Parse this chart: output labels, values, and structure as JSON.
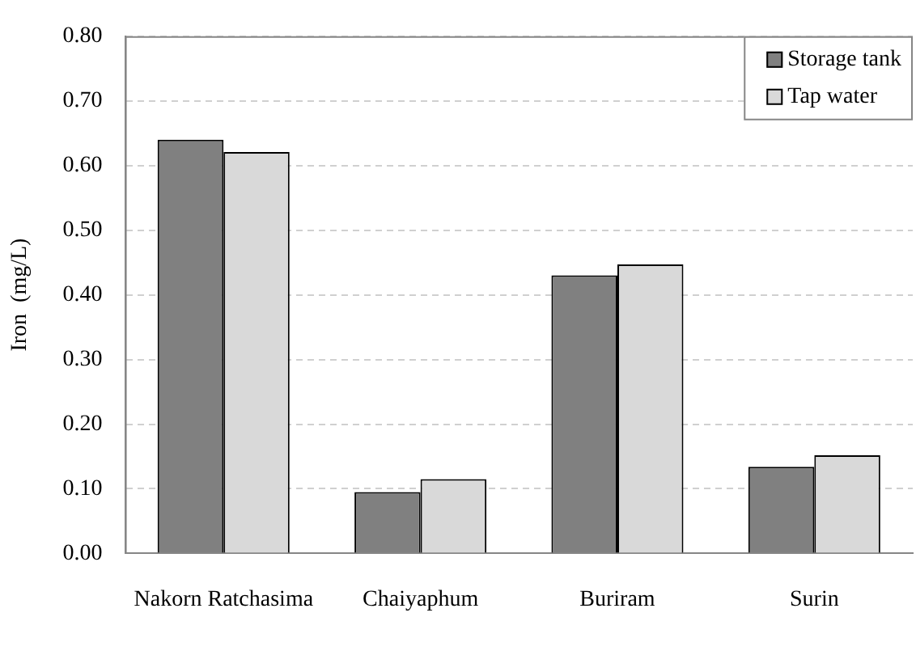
{
  "chart_data": {
    "type": "bar",
    "ylabel": "Iron  (mg/L)",
    "categories": [
      "Nakorn Ratchasima",
      "Chaiyaphum",
      "Buriram",
      "Surin"
    ],
    "series": [
      {
        "name": "Storage tank",
        "color": "#808080",
        "values": [
          0.64,
          0.095,
          0.43,
          0.134
        ]
      },
      {
        "name": "Tap water",
        "color": "#d9d9d9",
        "values": [
          0.621,
          0.115,
          0.447,
          0.152
        ]
      }
    ],
    "ylim": [
      0,
      0.8
    ],
    "yticks": [
      {
        "value": 0,
        "label": "0.00"
      },
      {
        "value": 0.1,
        "label": "0.10"
      },
      {
        "value": 0.2,
        "label": "0.20"
      },
      {
        "value": 0.3,
        "label": "0.30"
      },
      {
        "value": 0.4,
        "label": "0.40"
      },
      {
        "value": 0.5,
        "label": "0.50"
      },
      {
        "value": 0.6,
        "label": "0.60"
      },
      {
        "value": 0.7,
        "label": "0.70"
      },
      {
        "value": 0.8,
        "label": "0.80"
      }
    ],
    "grid": "y",
    "legend": "top right"
  }
}
